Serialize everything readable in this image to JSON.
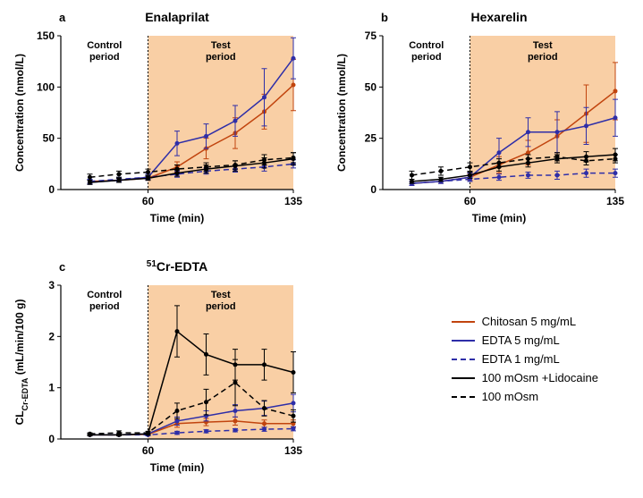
{
  "colors": {
    "chitosan": "#c1440e",
    "edta5": "#2e2ea8",
    "edta1": "#2e2ea8",
    "lidocaine": "#000000",
    "osm100": "#000000",
    "axis": "#000000",
    "shade": "#f9cfa5",
    "background": "#ffffff"
  },
  "axis_fontsize": 12,
  "title_fontsize": 14,
  "panel_label_fontsize": 13,
  "line_width": 1.5,
  "marker_radius": 2.5,
  "error_cap": 3,
  "legend": {
    "items": [
      {
        "label": "Chitosan 5 mg/mL",
        "color_key": "chitosan",
        "dash": false
      },
      {
        "label": "EDTA 5 mg/mL",
        "color_key": "edta5",
        "dash": false
      },
      {
        "label": "EDTA 1 mg/mL",
        "color_key": "edta1",
        "dash": true
      },
      {
        "label": "100 mOsm +Lidocaine",
        "color_key": "lidocaine",
        "dash": false
      },
      {
        "label": "100 mOsm",
        "color_key": "osm100",
        "dash": true
      }
    ]
  },
  "annotations": {
    "control": "Control\nperiod",
    "test": "Test\nperiod"
  },
  "panels": [
    {
      "id": "a",
      "letter": "a",
      "title": "Enalaprilat",
      "xlabel": "Time (min)",
      "ylabel": "Concentration (nmol/L)",
      "xlim": [
        15,
        135
      ],
      "ylim": [
        0,
        150
      ],
      "xticks": [
        60,
        135
      ],
      "yticks": [
        0,
        50,
        100,
        150
      ],
      "test_start": 60,
      "series": [
        {
          "key": "chitosan",
          "dash": false,
          "pts": [
            [
              30,
              8,
              2
            ],
            [
              45,
              9,
              2
            ],
            [
              60,
              11,
              2
            ],
            [
              75,
              22,
              5
            ],
            [
              90,
              40,
              10
            ],
            [
              105,
              55,
              15
            ],
            [
              120,
              76,
              17
            ],
            [
              135,
              102,
              25
            ]
          ]
        },
        {
          "key": "edta5",
          "dash": false,
          "pts": [
            [
              30,
              7,
              2
            ],
            [
              45,
              9,
              2
            ],
            [
              60,
              12,
              3
            ],
            [
              75,
              45,
              12
            ],
            [
              90,
              52,
              12
            ],
            [
              105,
              67,
              15
            ],
            [
              120,
              90,
              28
            ],
            [
              135,
              128,
              20
            ]
          ]
        },
        {
          "key": "edta1",
          "dash": true,
          "pts": [
            [
              30,
              8,
              2
            ],
            [
              45,
              10,
              2
            ],
            [
              60,
              12,
              2
            ],
            [
              75,
              15,
              3
            ],
            [
              90,
              18,
              3
            ],
            [
              105,
              20,
              3
            ],
            [
              120,
              22,
              4
            ],
            [
              135,
              25,
              4
            ]
          ]
        },
        {
          "key": "lidocaine",
          "dash": false,
          "pts": [
            [
              30,
              7,
              2
            ],
            [
              45,
              9,
              2
            ],
            [
              60,
              11,
              2
            ],
            [
              75,
              16,
              3
            ],
            [
              90,
              20,
              4
            ],
            [
              105,
              23,
              5
            ],
            [
              120,
              26,
              5
            ],
            [
              135,
              30,
              6
            ]
          ]
        },
        {
          "key": "osm100",
          "dash": true,
          "pts": [
            [
              30,
              12,
              3
            ],
            [
              45,
              15,
              3
            ],
            [
              60,
              17,
              3
            ],
            [
              75,
              20,
              4
            ],
            [
              90,
              22,
              4
            ],
            [
              105,
              24,
              4
            ],
            [
              120,
              29,
              5
            ],
            [
              135,
              31,
              5
            ]
          ]
        }
      ]
    },
    {
      "id": "b",
      "letter": "b",
      "title": "Hexarelin",
      "xlabel": "Time (min)",
      "ylabel": "Concentration (nmol/L)",
      "xlim": [
        15,
        135
      ],
      "ylim": [
        0,
        75
      ],
      "xticks": [
        60,
        135
      ],
      "yticks": [
        0,
        25,
        50,
        75
      ],
      "test_start": 60,
      "series": [
        {
          "key": "chitosan",
          "dash": false,
          "pts": [
            [
              30,
              3,
              1
            ],
            [
              45,
              4,
              1
            ],
            [
              60,
              6,
              1.5
            ],
            [
              75,
              12,
              4
            ],
            [
              90,
              18,
              6
            ],
            [
              105,
              26,
              8
            ],
            [
              120,
              37,
              14
            ],
            [
              135,
              48,
              14
            ]
          ]
        },
        {
          "key": "edta5",
          "dash": false,
          "pts": [
            [
              30,
              3,
              1
            ],
            [
              45,
              4,
              1
            ],
            [
              60,
              6,
              2
            ],
            [
              75,
              18,
              7
            ],
            [
              90,
              28,
              7
            ],
            [
              105,
              28,
              10
            ],
            [
              120,
              31,
              9
            ],
            [
              135,
              35,
              9
            ]
          ]
        },
        {
          "key": "edta1",
          "dash": true,
          "pts": [
            [
              30,
              3,
              1
            ],
            [
              45,
              4,
              1
            ],
            [
              60,
              5,
              1
            ],
            [
              75,
              6,
              1.5
            ],
            [
              90,
              7,
              1.5
            ],
            [
              105,
              7,
              2
            ],
            [
              120,
              8,
              2
            ],
            [
              135,
              8,
              2
            ]
          ]
        },
        {
          "key": "lidocaine",
          "dash": false,
          "pts": [
            [
              30,
              4,
              1
            ],
            [
              45,
              5,
              1
            ],
            [
              60,
              7,
              1.5
            ],
            [
              75,
              11,
              2
            ],
            [
              90,
              13,
              2
            ],
            [
              105,
              15,
              2
            ],
            [
              120,
              16,
              2.5
            ],
            [
              135,
              17,
              3
            ]
          ]
        },
        {
          "key": "osm100",
          "dash": true,
          "pts": [
            [
              30,
              7,
              2
            ],
            [
              45,
              9,
              2
            ],
            [
              60,
              11,
              2
            ],
            [
              75,
              13,
              2
            ],
            [
              90,
              15,
              2
            ],
            [
              105,
              16,
              2
            ],
            [
              120,
              14,
              2
            ],
            [
              135,
              15,
              2
            ]
          ]
        }
      ]
    },
    {
      "id": "c",
      "letter": "c",
      "title_html": "<tspan font-size='10' baseline-shift='super'>51</tspan>Cr-EDTA",
      "title": "51Cr-EDTA",
      "xlabel": "Time (min)",
      "ylabel_html": "CL<tspan font-size='9' baseline-shift='sub'>Cr-EDTA</tspan> (mL/min/100 g)",
      "ylabel": "CLCr-EDTA (mL/min/100 g)",
      "xlim": [
        15,
        135
      ],
      "ylim": [
        0,
        3
      ],
      "xticks": [
        60,
        135
      ],
      "yticks": [
        0,
        1,
        2,
        3
      ],
      "test_start": 60,
      "series": [
        {
          "key": "chitosan",
          "dash": false,
          "pts": [
            [
              30,
              0.08,
              0.02
            ],
            [
              45,
              0.08,
              0.02
            ],
            [
              60,
              0.09,
              0.02
            ],
            [
              75,
              0.3,
              0.07
            ],
            [
              90,
              0.33,
              0.07
            ],
            [
              105,
              0.35,
              0.08
            ],
            [
              120,
              0.3,
              0.07
            ],
            [
              135,
              0.3,
              0.07
            ]
          ]
        },
        {
          "key": "edta5",
          "dash": false,
          "pts": [
            [
              30,
              0.08,
              0.02
            ],
            [
              45,
              0.08,
              0.02
            ],
            [
              60,
              0.1,
              0.02
            ],
            [
              75,
              0.35,
              0.08
            ],
            [
              90,
              0.45,
              0.1
            ],
            [
              105,
              0.55,
              0.12
            ],
            [
              120,
              0.6,
              0.14
            ],
            [
              135,
              0.7,
              0.17
            ]
          ]
        },
        {
          "key": "edta1",
          "dash": true,
          "pts": [
            [
              30,
              0.08,
              0.02
            ],
            [
              45,
              0.08,
              0.02
            ],
            [
              60,
              0.08,
              0.02
            ],
            [
              75,
              0.12,
              0.03
            ],
            [
              90,
              0.15,
              0.03
            ],
            [
              105,
              0.17,
              0.03
            ],
            [
              120,
              0.19,
              0.04
            ],
            [
              135,
              0.2,
              0.04
            ]
          ]
        },
        {
          "key": "lidocaine",
          "dash": false,
          "pts": [
            [
              30,
              0.08,
              0.02
            ],
            [
              45,
              0.08,
              0.02
            ],
            [
              60,
              0.1,
              0.02
            ],
            [
              75,
              2.1,
              0.5
            ],
            [
              90,
              1.65,
              0.4
            ],
            [
              105,
              1.45,
              0.3
            ],
            [
              120,
              1.45,
              0.3
            ],
            [
              135,
              1.3,
              0.4
            ]
          ]
        },
        {
          "key": "osm100",
          "dash": true,
          "pts": [
            [
              30,
              0.1,
              0.02
            ],
            [
              45,
              0.12,
              0.04
            ],
            [
              60,
              0.12,
              0.03
            ],
            [
              75,
              0.55,
              0.15
            ],
            [
              90,
              0.72,
              0.25
            ],
            [
              105,
              1.1,
              0.45
            ],
            [
              120,
              0.6,
              0.15
            ],
            [
              135,
              0.45,
              0.12
            ]
          ]
        }
      ]
    }
  ]
}
